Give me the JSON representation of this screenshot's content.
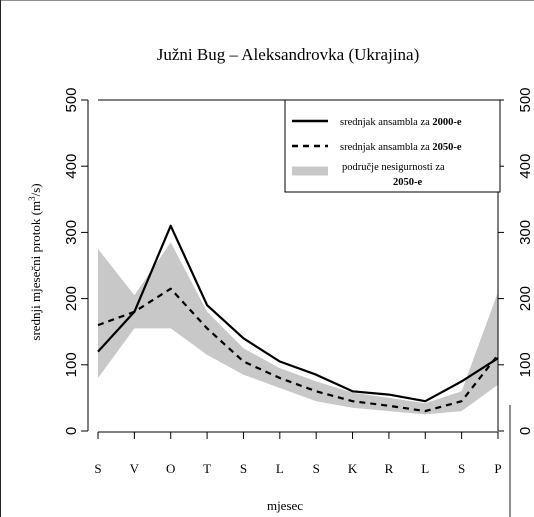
{
  "chart_data": {
    "type": "line",
    "title": "Južni Bug – Aleksandrovka (Ukrajina)",
    "xlabel": "mjesec",
    "ylabel": "srednji mjesečni protok (m³/s)",
    "categories": [
      "S",
      "V",
      "O",
      "T",
      "S",
      "L",
      "S",
      "K",
      "R",
      "L",
      "S",
      "P"
    ],
    "ylim": [
      0,
      500
    ],
    "yticks": [
      0,
      100,
      200,
      300,
      400,
      500
    ],
    "right_yticks": [
      0,
      100,
      200,
      300,
      400,
      500
    ],
    "grid": false,
    "legend_position": "top-right",
    "legend": {
      "item1_text": "srednjak ansambla za ",
      "item1_bold": "2000-e",
      "item2_text": "srednjak ansambla za ",
      "item2_bold": "2050-e",
      "item3_line1": "područje nesigurnosti za",
      "item3_line2": "2050-e"
    },
    "series": [
      {
        "name": "srednjak ansambla za 2000-e",
        "style": "solid",
        "color": "#000000",
        "values": [
          120,
          180,
          310,
          190,
          140,
          105,
          85,
          60,
          55,
          45,
          75,
          110
        ]
      },
      {
        "name": "srednjak ansambla za 2050-e",
        "style": "dashed",
        "color": "#000000",
        "values": [
          160,
          180,
          215,
          155,
          105,
          80,
          60,
          45,
          38,
          30,
          45,
          115
        ]
      }
    ],
    "band": {
      "name": "područje nesigurnosti za 2050-e",
      "color": "#c8c8c8",
      "upper": [
        275,
        205,
        285,
        180,
        125,
        95,
        75,
        58,
        50,
        42,
        60,
        210
      ],
      "lower": [
        80,
        155,
        155,
        115,
        85,
        65,
        45,
        35,
        30,
        25,
        30,
        70
      ]
    }
  }
}
